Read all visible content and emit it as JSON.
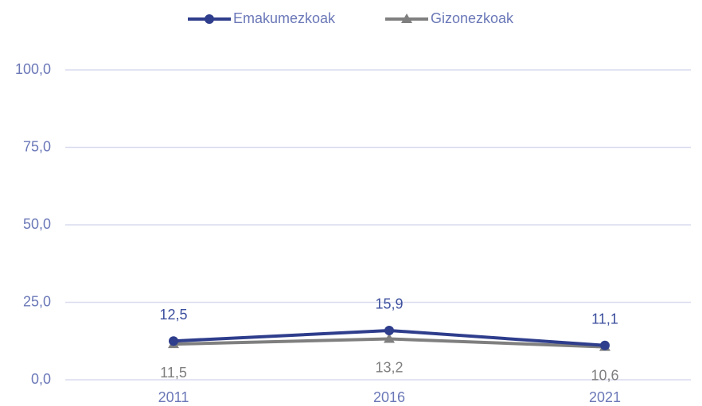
{
  "chart_data": {
    "type": "line",
    "categories": [
      "2011",
      "2016",
      "2021"
    ],
    "series": [
      {
        "name": "Emakumezkoak",
        "color": "#2e3d8c",
        "marker": "circle",
        "values": [
          12.5,
          15.9,
          11.1
        ],
        "value_labels": [
          "12,5",
          "15,9",
          "11,1"
        ]
      },
      {
        "name": "Gizonezkoak",
        "color": "#7f7f7f",
        "marker": "triangle",
        "values": [
          11.5,
          13.2,
          10.6
        ],
        "value_labels": [
          "11,5",
          "13,2",
          "10,6"
        ]
      }
    ],
    "ylim": [
      0,
      100
    ],
    "yticks": [
      {
        "value": 0,
        "label": "0,0"
      },
      {
        "value": 25,
        "label": "25,0"
      },
      {
        "value": 50,
        "label": "50,0"
      },
      {
        "value": 75,
        "label": "75,0"
      },
      {
        "value": 100,
        "label": "100,0"
      }
    ],
    "grid": true,
    "legend": "top"
  }
}
